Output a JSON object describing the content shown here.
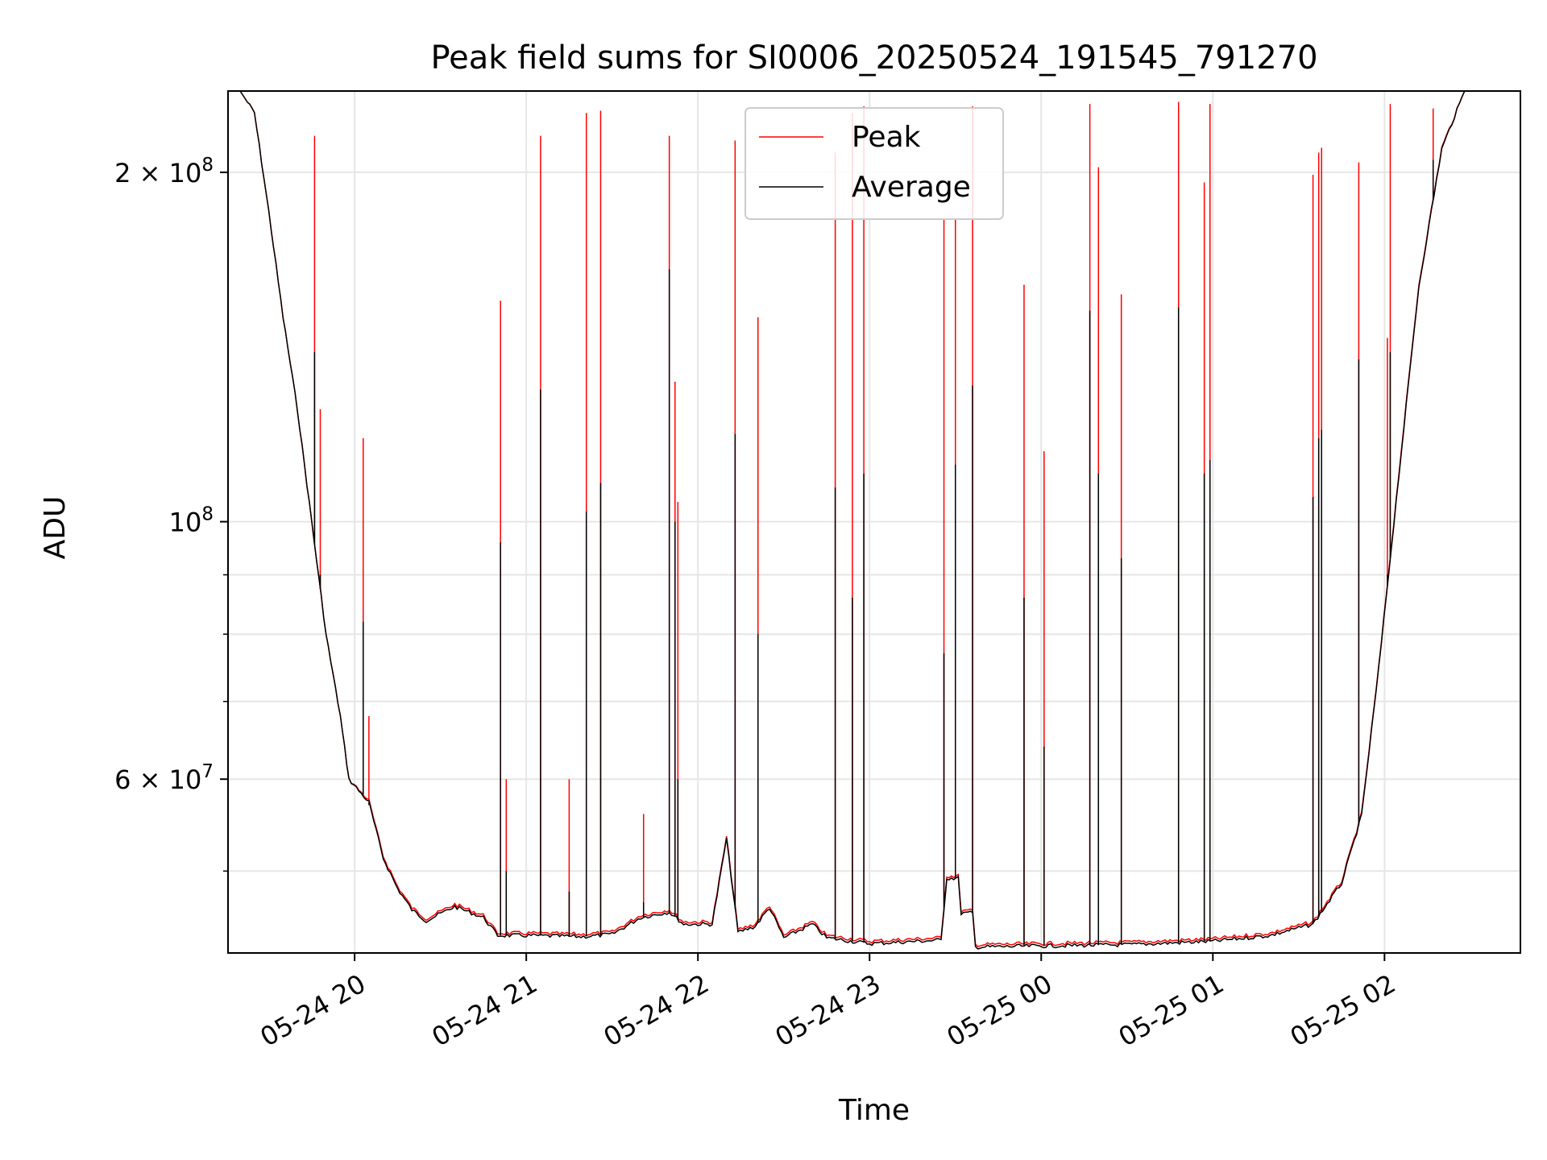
{
  "chart_data": {
    "type": "line",
    "title": "Peak field sums for SI0006_20250524_191545_791270",
    "xlabel": "Time",
    "ylabel": "ADU",
    "yscale": "log",
    "ylim": [
      42500000,
      235000000
    ],
    "xlim": [
      "2025-05-24 19:15:45",
      "2025-05-25 02:47:30"
    ],
    "grid": true,
    "legend": "upper center",
    "xticks": [
      {
        "t": "2025-05-24 20:00",
        "label": "05-24 20"
      },
      {
        "t": "2025-05-24 21:00",
        "label": "05-24 21"
      },
      {
        "t": "2025-05-24 22:00",
        "label": "05-24 22"
      },
      {
        "t": "2025-05-24 23:00",
        "label": "05-24 23"
      },
      {
        "t": "2025-05-25 00:00",
        "label": "05-25 00"
      },
      {
        "t": "2025-05-25 01:00",
        "label": "05-25 01"
      },
      {
        "t": "2025-05-25 02:00",
        "label": "05-25 02"
      }
    ],
    "yticks_major": [
      {
        "v": 60000000,
        "base": "6 × 10",
        "exp": "7"
      },
      {
        "v": 100000000,
        "base": "10",
        "exp": "8"
      },
      {
        "v": 200000000,
        "base": "2 × 10",
        "exp": "8"
      }
    ],
    "yticks_minor": [
      50000000,
      70000000,
      80000000,
      90000000
    ],
    "series": [
      {
        "name": "Peak",
        "color": "#ff0000",
        "baseline": [
          [
            "2025-05-24 19:15:45",
            235000000
          ],
          [
            "2025-05-24 19:20",
            235000000
          ],
          [
            "2025-05-24 19:25",
            225000000
          ],
          [
            "2025-05-24 19:30",
            185000000
          ],
          [
            "2025-05-24 19:35",
            150000000
          ],
          [
            "2025-05-24 19:40",
            125000000
          ],
          [
            "2025-05-24 19:45",
            100000000
          ],
          [
            "2025-05-24 19:50",
            80000000
          ],
          [
            "2025-05-24 19:55",
            68000000
          ],
          [
            "2025-05-24 19:58",
            60000000
          ],
          [
            "2025-05-24 20:05",
            57500000
          ],
          [
            "2025-05-24 20:10",
            51500000
          ],
          [
            "2025-05-24 20:15",
            48500000
          ],
          [
            "2025-05-24 20:20",
            46500000
          ],
          [
            "2025-05-24 20:25",
            45500000
          ],
          [
            "2025-05-24 20:35",
            46800000
          ],
          [
            "2025-05-24 20:45",
            45800000
          ],
          [
            "2025-05-24 20:50",
            44200000
          ],
          [
            "2025-05-24 21:00",
            44200000
          ],
          [
            "2025-05-24 21:20",
            44100000
          ],
          [
            "2025-05-24 21:30",
            44300000
          ],
          [
            "2025-05-24 21:40",
            45800000
          ],
          [
            "2025-05-24 21:50",
            46300000
          ],
          [
            "2025-05-24 21:55",
            45200000
          ],
          [
            "2025-05-24 22:05",
            45200000
          ],
          [
            "2025-05-24 22:10",
            53500000
          ],
          [
            "2025-05-24 22:14",
            44500000
          ],
          [
            "2025-05-24 22:20",
            45000000
          ],
          [
            "2025-05-24 22:25",
            46700000
          ],
          [
            "2025-05-24 22:30",
            44000000
          ],
          [
            "2025-05-24 22:40",
            45200000
          ],
          [
            "2025-05-24 22:45",
            44000000
          ],
          [
            "2025-05-24 23:00",
            43500000
          ],
          [
            "2025-05-24 23:25",
            43800000
          ],
          [
            "2025-05-24 23:27",
            49500000
          ],
          [
            "2025-05-24 23:31",
            49500000
          ],
          [
            "2025-05-24 23:32",
            46200000
          ],
          [
            "2025-05-24 23:36",
            46200000
          ],
          [
            "2025-05-24 23:37",
            43200000
          ],
          [
            "2025-05-25 00:00",
            43300000
          ],
          [
            "2025-05-25 00:30",
            43400000
          ],
          [
            "2025-05-25 01:00",
            43700000
          ],
          [
            "2025-05-25 01:20",
            44200000
          ],
          [
            "2025-05-25 01:35",
            45200000
          ],
          [
            "2025-05-25 01:45",
            49000000
          ],
          [
            "2025-05-25 01:52",
            56000000
          ],
          [
            "2025-05-25 01:58",
            75000000
          ],
          [
            "2025-05-25 02:05",
            110000000
          ],
          [
            "2025-05-25 02:12",
            160000000
          ],
          [
            "2025-05-25 02:20",
            210000000
          ],
          [
            "2025-05-25 02:28",
            235000000
          ],
          [
            "2025-05-25 02:47:30",
            235000000
          ]
        ],
        "spikes": [
          [
            "2025-05-24 19:46",
            215000000
          ],
          [
            "2025-05-24 19:48",
            125000000
          ],
          [
            "2025-05-24 20:03",
            118000000
          ],
          [
            "2025-05-24 20:05",
            68000000
          ],
          [
            "2025-05-24 20:51",
            155000000
          ],
          [
            "2025-05-24 20:53",
            60000000
          ],
          [
            "2025-05-24 21:05",
            215000000
          ],
          [
            "2025-05-24 21:15",
            60000000
          ],
          [
            "2025-05-24 21:21",
            225000000
          ],
          [
            "2025-05-24 21:26",
            226000000
          ],
          [
            "2025-05-24 21:41",
            56000000
          ],
          [
            "2025-05-24 21:50",
            215000000
          ],
          [
            "2025-05-24 21:52",
            132000000
          ],
          [
            "2025-05-24 21:53",
            104000000
          ],
          [
            "2025-05-24 22:13",
            213000000
          ],
          [
            "2025-05-24 22:21",
            150000000
          ],
          [
            "2025-05-24 22:48",
            208000000
          ],
          [
            "2025-05-24 22:54",
            225000000
          ],
          [
            "2025-05-24 22:58",
            228000000
          ],
          [
            "2025-05-24 23:26",
            182000000
          ],
          [
            "2025-05-24 23:30",
            182000000
          ],
          [
            "2025-05-24 23:36",
            228000000
          ],
          [
            "2025-05-24 23:54",
            160000000
          ],
          [
            "2025-05-25 00:01",
            115000000
          ],
          [
            "2025-05-25 00:17",
            229000000
          ],
          [
            "2025-05-25 00:20",
            202000000
          ],
          [
            "2025-05-25 00:28",
            157000000
          ],
          [
            "2025-05-25 00:48",
            230000000
          ],
          [
            "2025-05-25 00:57",
            196000000
          ],
          [
            "2025-05-25 00:59",
            229000000
          ],
          [
            "2025-05-25 01:35",
            199000000
          ],
          [
            "2025-05-25 01:37",
            208000000
          ],
          [
            "2025-05-25 01:38",
            210000000
          ],
          [
            "2025-05-25 01:51",
            204000000
          ],
          [
            "2025-05-25 02:01",
            144000000
          ],
          [
            "2025-05-25 02:02",
            229000000
          ],
          [
            "2025-05-25 02:17",
            227000000
          ]
        ]
      },
      {
        "name": "Average",
        "color": "#000000",
        "baseline": [
          [
            "2025-05-24 19:15:45",
            235000000
          ],
          [
            "2025-05-24 19:20",
            235000000
          ],
          [
            "2025-05-24 19:25",
            225000000
          ],
          [
            "2025-05-24 19:30",
            185000000
          ],
          [
            "2025-05-24 19:35",
            150000000
          ],
          [
            "2025-05-24 19:40",
            125000000
          ],
          [
            "2025-05-24 19:45",
            100000000
          ],
          [
            "2025-05-24 19:50",
            80000000
          ],
          [
            "2025-05-24 19:55",
            68000000
          ],
          [
            "2025-05-24 19:58",
            60000000
          ],
          [
            "2025-05-24 20:05",
            57300000
          ],
          [
            "2025-05-24 20:10",
            51300000
          ],
          [
            "2025-05-24 20:15",
            48300000
          ],
          [
            "2025-05-24 20:20",
            46300000
          ],
          [
            "2025-05-24 20:25",
            45300000
          ],
          [
            "2025-05-24 20:35",
            46600000
          ],
          [
            "2025-05-24 20:45",
            45600000
          ],
          [
            "2025-05-24 20:50",
            44000000
          ],
          [
            "2025-05-24 21:00",
            44000000
          ],
          [
            "2025-05-24 21:20",
            43900000
          ],
          [
            "2025-05-24 21:30",
            44100000
          ],
          [
            "2025-05-24 21:40",
            45600000
          ],
          [
            "2025-05-24 21:50",
            46100000
          ],
          [
            "2025-05-24 21:55",
            45000000
          ],
          [
            "2025-05-24 22:05",
            45000000
          ],
          [
            "2025-05-24 22:10",
            53300000
          ],
          [
            "2025-05-24 22:14",
            44300000
          ],
          [
            "2025-05-24 22:20",
            44800000
          ],
          [
            "2025-05-24 22:25",
            46500000
          ],
          [
            "2025-05-24 22:30",
            43800000
          ],
          [
            "2025-05-24 22:40",
            45000000
          ],
          [
            "2025-05-24 22:45",
            43800000
          ],
          [
            "2025-05-24 23:00",
            43300000
          ],
          [
            "2025-05-24 23:25",
            43600000
          ],
          [
            "2025-05-24 23:27",
            49300000
          ],
          [
            "2025-05-24 23:31",
            49300000
          ],
          [
            "2025-05-24 23:32",
            46000000
          ],
          [
            "2025-05-24 23:36",
            46000000
          ],
          [
            "2025-05-24 23:37",
            43000000
          ],
          [
            "2025-05-25 00:00",
            43100000
          ],
          [
            "2025-05-25 00:30",
            43200000
          ],
          [
            "2025-05-25 01:00",
            43500000
          ],
          [
            "2025-05-25 01:20",
            44000000
          ],
          [
            "2025-05-25 01:35",
            45000000
          ],
          [
            "2025-05-25 01:45",
            48800000
          ],
          [
            "2025-05-25 01:52",
            55800000
          ],
          [
            "2025-05-25 01:58",
            74800000
          ],
          [
            "2025-05-25 02:05",
            109500000
          ],
          [
            "2025-05-25 02:12",
            159500000
          ],
          [
            "2025-05-25 02:20",
            209500000
          ],
          [
            "2025-05-25 02:28",
            235000000
          ],
          [
            "2025-05-25 02:47:30",
            235000000
          ]
        ],
        "spikes": [
          [
            "2025-05-24 19:46",
            140000000
          ],
          [
            "2025-05-24 19:48",
            90000000
          ],
          [
            "2025-05-24 20:03",
            82000000
          ],
          [
            "2025-05-24 20:05",
            57000000
          ],
          [
            "2025-05-24 20:51",
            96000000
          ],
          [
            "2025-05-24 20:53",
            50000000
          ],
          [
            "2025-05-24 21:05",
            130000000
          ],
          [
            "2025-05-24 21:15",
            48000000
          ],
          [
            "2025-05-24 21:21",
            102000000
          ],
          [
            "2025-05-24 21:26",
            108000000
          ],
          [
            "2025-05-24 21:41",
            47000000
          ],
          [
            "2025-05-24 21:50",
            165000000
          ],
          [
            "2025-05-24 21:52",
            100000000
          ],
          [
            "2025-05-24 21:53",
            60000000
          ],
          [
            "2025-05-24 22:13",
            119000000
          ],
          [
            "2025-05-24 22:21",
            80000000
          ],
          [
            "2025-05-24 22:48",
            107000000
          ],
          [
            "2025-05-24 22:54",
            86000000
          ],
          [
            "2025-05-24 22:58",
            110000000
          ],
          [
            "2025-05-24 23:26",
            77000000
          ],
          [
            "2025-05-24 23:30",
            112000000
          ],
          [
            "2025-05-24 23:36",
            131000000
          ],
          [
            "2025-05-24 23:54",
            86000000
          ],
          [
            "2025-05-25 00:01",
            64000000
          ],
          [
            "2025-05-25 00:17",
            152000000
          ],
          [
            "2025-05-25 00:20",
            110000000
          ],
          [
            "2025-05-25 00:28",
            93000000
          ],
          [
            "2025-05-25 00:48",
            153000000
          ],
          [
            "2025-05-25 00:57",
            110000000
          ],
          [
            "2025-05-25 00:59",
            113000000
          ],
          [
            "2025-05-25 01:35",
            105000000
          ],
          [
            "2025-05-25 01:37",
            118000000
          ],
          [
            "2025-05-25 01:38",
            120000000
          ],
          [
            "2025-05-25 01:51",
            138000000
          ],
          [
            "2025-05-25 02:01",
            90000000
          ],
          [
            "2025-05-25 02:02",
            140000000
          ],
          [
            "2025-05-25 02:17",
            205000000
          ]
        ]
      }
    ]
  }
}
